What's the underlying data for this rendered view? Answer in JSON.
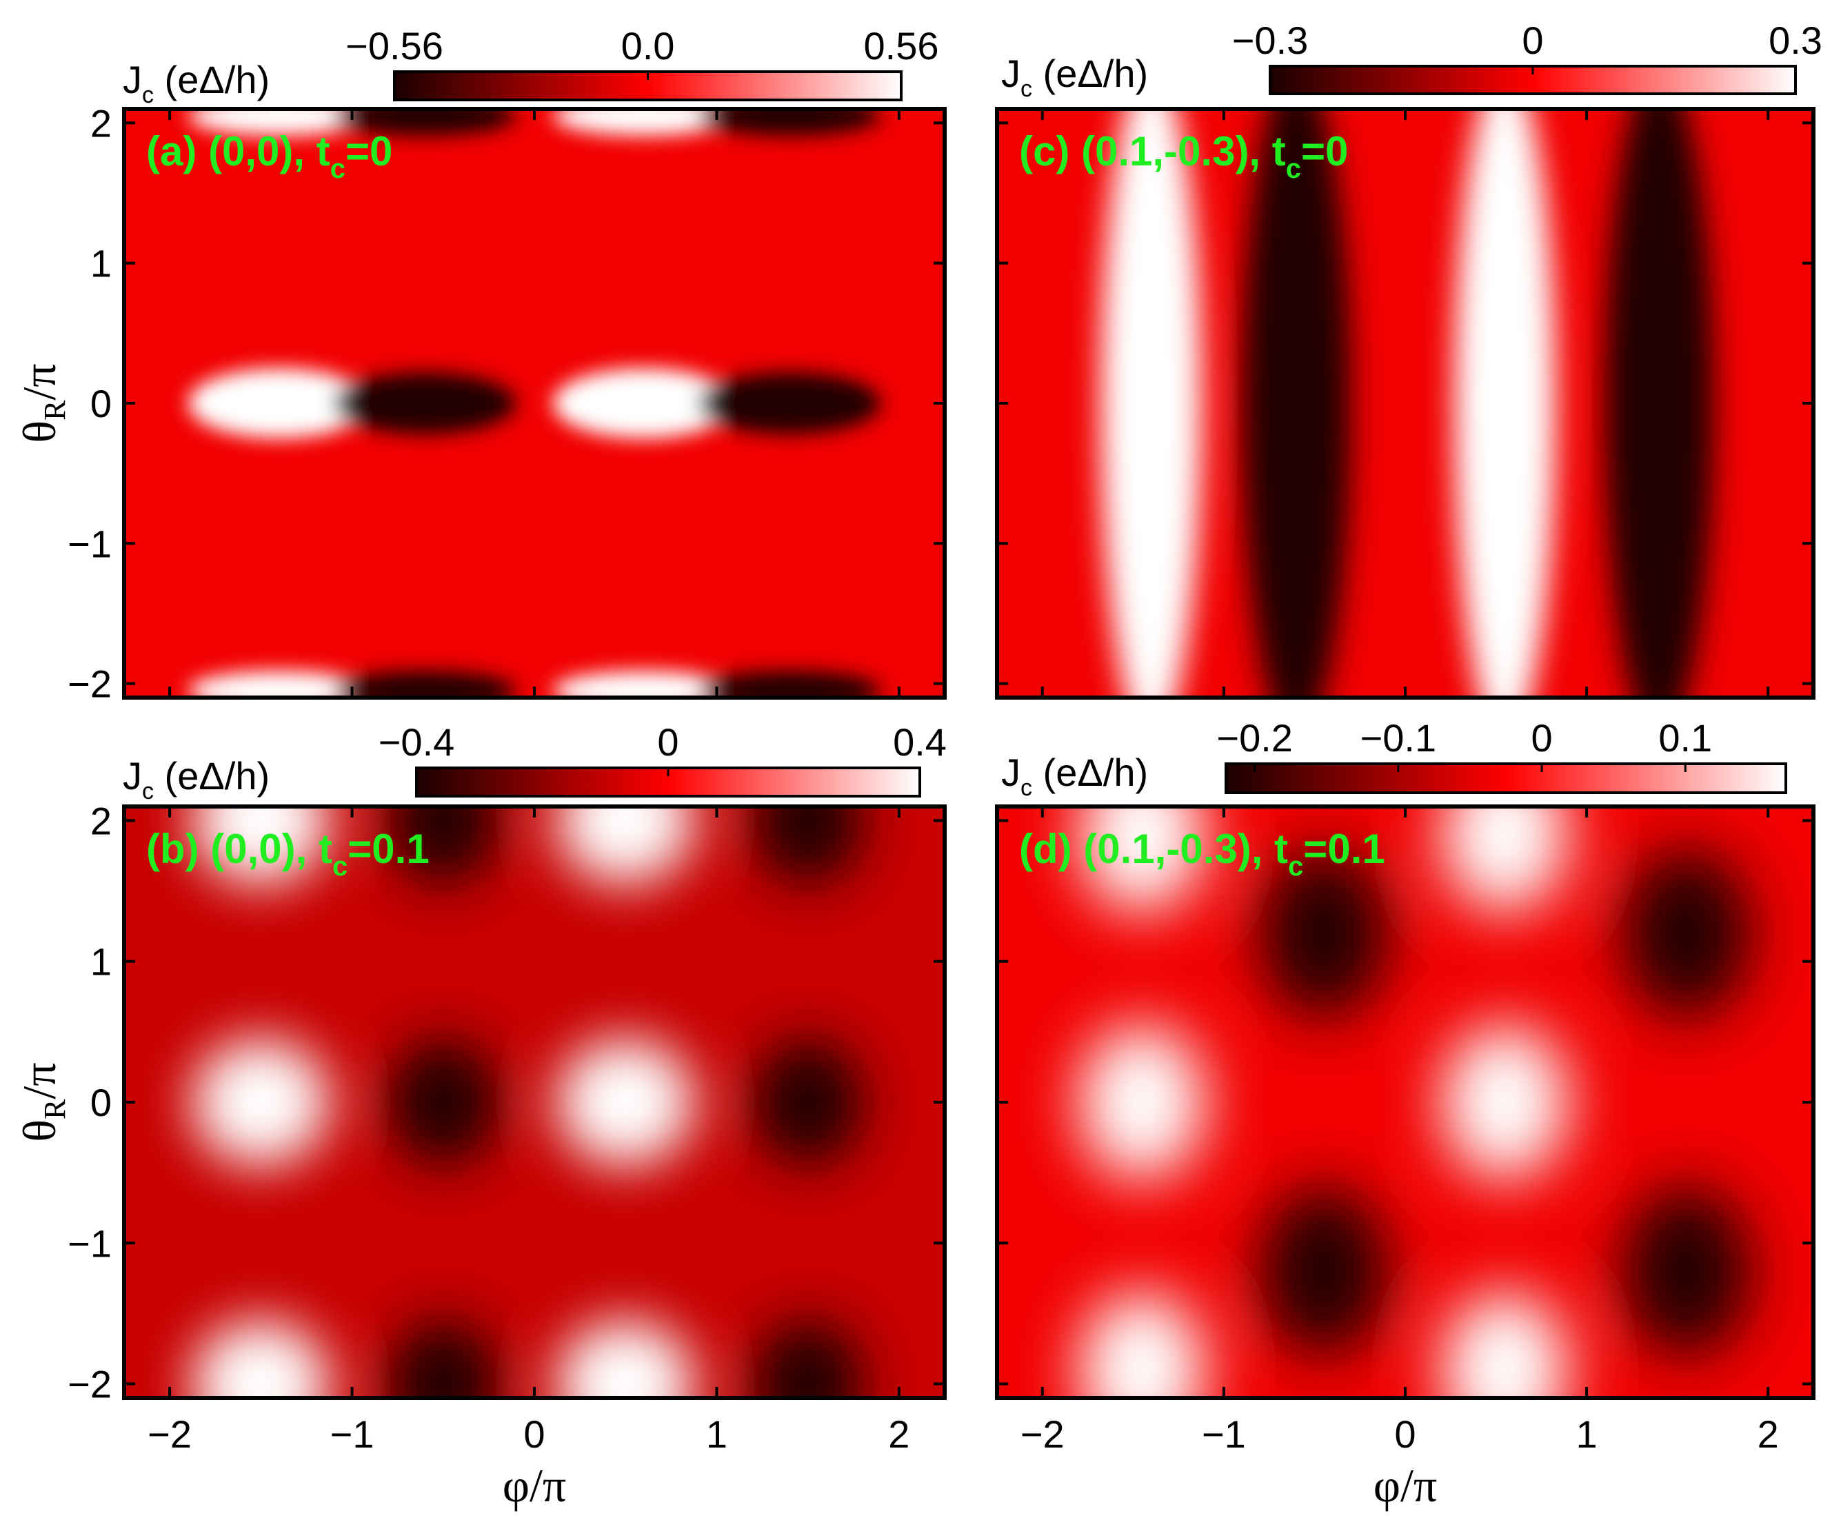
{
  "chart_data": [
    {
      "type": "heatmap",
      "panel_label": "(a) (0,0), t",
      "panel_sub": "c",
      "panel_suffix": "=0",
      "xlabel": "φ/π",
      "ylabel_main": "θ",
      "ylabel_sub": "R",
      "ylabel_suffix": "/π",
      "xlim": [
        -2.25,
        2.25
      ],
      "ylim": [
        -2.1,
        2.1
      ],
      "xticks": [
        -2,
        -1,
        0,
        1,
        2
      ],
      "yticks": [
        2,
        1,
        0,
        -1,
        -2
      ],
      "colorbar": {
        "label_main": "J",
        "label_sub": "c",
        "label_suffix": " (eΔ/h)",
        "min": -0.56,
        "max": 0.56,
        "tick_values": [
          -0.56,
          0.0,
          0.56
        ],
        "tick_labels": [
          "−0.56",
          "0.0",
          "0.56"
        ],
        "colors": [
          "#1a0000",
          "#ff0000",
          "#ffffff"
        ]
      }
    },
    {
      "type": "heatmap",
      "panel_label": "(b) (0,0), t",
      "panel_sub": "c",
      "panel_suffix": "=0.1",
      "xlabel": "φ/π",
      "ylabel_main": "θ",
      "ylabel_sub": "R",
      "ylabel_suffix": "/π",
      "xlim": [
        -2.25,
        2.25
      ],
      "ylim": [
        -2.1,
        2.1
      ],
      "xticks": [
        -2,
        -1,
        0,
        1,
        2
      ],
      "yticks": [
        2,
        1,
        0,
        -1,
        -2
      ],
      "colorbar": {
        "label_main": "J",
        "label_sub": "c",
        "label_suffix": " (eΔ/h)",
        "min": -0.4,
        "max": 0.4,
        "tick_values": [
          -0.4,
          0,
          0.4
        ],
        "tick_labels": [
          "−0.4",
          "0",
          "0.4"
        ],
        "colors": [
          "#1a0000",
          "#ff0000",
          "#ffffff"
        ]
      }
    },
    {
      "type": "heatmap",
      "panel_label": "(c) (0.1,-0.3), t",
      "panel_sub": "c",
      "panel_suffix": "=0",
      "xlabel": "φ/π",
      "ylabel_main": "θ",
      "ylabel_sub": "R",
      "ylabel_suffix": "/π",
      "xlim": [
        -2.25,
        2.25
      ],
      "ylim": [
        -2.1,
        2.1
      ],
      "xticks": [
        -2,
        -1,
        0,
        1,
        2
      ],
      "yticks": [
        2,
        1,
        0,
        -1,
        -2
      ],
      "colorbar": {
        "label_main": "J",
        "label_sub": "c",
        "label_suffix": " (eΔ/h)",
        "min": -0.3,
        "max": 0.3,
        "tick_values": [
          -0.3,
          0,
          0.3
        ],
        "tick_labels": [
          "−0.3",
          "0",
          "0.3"
        ],
        "colors": [
          "#1a0000",
          "#ff0000",
          "#ffffff"
        ]
      }
    },
    {
      "type": "heatmap",
      "panel_label": "(d) (0.1,-0.3), t",
      "panel_sub": "c",
      "panel_suffix": "=0.1",
      "xlabel": "φ/π",
      "ylabel_main": "θ",
      "ylabel_sub": "R",
      "ylabel_suffix": "/π",
      "xlim": [
        -2.25,
        2.25
      ],
      "ylim": [
        -2.1,
        2.1
      ],
      "xticks": [
        -2,
        -1,
        0,
        1,
        2
      ],
      "yticks": [
        2,
        1,
        0,
        -1,
        -2
      ],
      "colorbar": {
        "label_main": "J",
        "label_sub": "c",
        "label_suffix": " (eΔ/h)",
        "min": -0.22,
        "max": 0.17,
        "tick_values": [
          -0.2,
          -0.1,
          0,
          0.1
        ],
        "tick_labels": [
          "−0.2",
          "−0.1",
          "0",
          "0.1"
        ],
        "colors": [
          "#1a0000",
          "#ff0000",
          "#ffffff"
        ]
      }
    }
  ]
}
